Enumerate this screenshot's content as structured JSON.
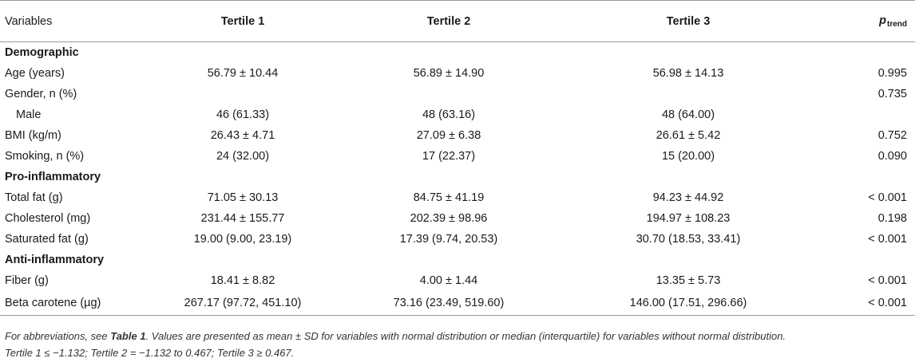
{
  "table": {
    "header": {
      "variables": "Variables",
      "tertile1": "Tertile 1",
      "tertile2": "Tertile 2",
      "tertile3": "Tertile 3",
      "p_main": "p",
      "p_sub": "trend"
    },
    "rows": [
      {
        "type": "section",
        "label": "Demographic"
      },
      {
        "type": "data",
        "label": "Age (years)",
        "t1": "56.79 ± 10.44",
        "t2": "56.89 ± 14.90",
        "t3": "56.98 ± 14.13",
        "p": "0.995"
      },
      {
        "type": "data",
        "label": "Gender, n (%)",
        "t1": "",
        "t2": "",
        "t3": "",
        "p": "0.735"
      },
      {
        "type": "data",
        "indent": true,
        "label": "Male",
        "t1": "46 (61.33)",
        "t2": "48 (63.16)",
        "t3": "48 (64.00)",
        "p": ""
      },
      {
        "type": "data",
        "label": "BMI (kg/m)",
        "t1": "26.43 ± 4.71",
        "t2": "27.09 ± 6.38",
        "t3": "26.61 ± 5.42",
        "p": "0.752"
      },
      {
        "type": "data",
        "label": "Smoking, n (%)",
        "t1": "24 (32.00)",
        "t2": "17 (22.37)",
        "t3": "15 (20.00)",
        "p": "0.090"
      },
      {
        "type": "section",
        "label": "Pro-inflammatory"
      },
      {
        "type": "data",
        "label": "Total fat (g)",
        "t1": "71.05 ± 30.13",
        "t2": "84.75 ± 41.19",
        "t3": "94.23 ± 44.92",
        "p": "< 0.001"
      },
      {
        "type": "data",
        "label": "Cholesterol (mg)",
        "t1": "231.44 ± 155.77",
        "t2": "202.39 ± 98.96",
        "t3": "194.97 ± 108.23",
        "p": "0.198"
      },
      {
        "type": "data",
        "label": "Saturated fat (g)",
        "t1": "19.00 (9.00, 23.19)",
        "t2": "17.39 (9.74, 20.53)",
        "t3": "30.70 (18.53, 33.41)",
        "p": "< 0.001"
      },
      {
        "type": "section",
        "label": "Anti-inflammatory"
      },
      {
        "type": "data",
        "label": "Fiber (g)",
        "t1": "18.41 ± 8.82",
        "t2": "4.00 ± 1.44",
        "t3": "13.35 ± 5.73",
        "p": "< 0.001"
      },
      {
        "type": "data",
        "label": "Beta carotene (µg)",
        "t1": "267.17 (97.72, 451.10)",
        "t2": "73.16 (23.49, 519.60)",
        "t3": "146.00 (17.51, 296.66)",
        "p": "< 0.001"
      }
    ]
  },
  "footnote": {
    "part1": "For abbreviations, see ",
    "ref": "Table 1",
    "part2": ". Values are presented as mean ± SD for variables with normal distribution or median (interquartile) for variables without normal distribution.",
    "line2": "Tertile 1 ≤ −1.132; Tertile 2 = −1.132 to 0.467; Tertile 3 ≥ 0.467."
  }
}
